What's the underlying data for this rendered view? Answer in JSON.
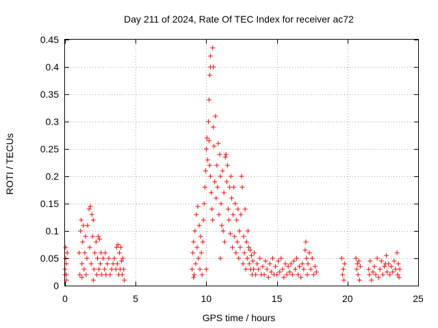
{
  "chart_data": {
    "type": "scatter",
    "title": "Day 211 of 2024, Rate Of TEC Index for receiver ac72",
    "xlabel": "GPS time / hours",
    "ylabel": "ROTI / TECUs",
    "xlim": [
      0,
      25
    ],
    "ylim": [
      0,
      0.45
    ],
    "x_ticks": [
      0,
      5,
      10,
      15,
      20,
      25
    ],
    "x_tick_labels": [
      "0",
      "5",
      "10",
      "15",
      "20",
      "25"
    ],
    "y_ticks": [
      0,
      0.05,
      0.1,
      0.15,
      0.2,
      0.25,
      0.3,
      0.35,
      0.4,
      0.45
    ],
    "y_tick_labels": [
      "0",
      "0.05",
      "0.1",
      "0.15",
      "0.2",
      "0.25",
      "0.3",
      "0.35",
      "0.4",
      "0.45"
    ],
    "grid": true,
    "marker": "+",
    "marker_color": "#ff0000",
    "points": [
      [
        0.0,
        0.02
      ],
      [
        0.0,
        0.03
      ],
      [
        0.05,
        0.05
      ],
      [
        0.05,
        0.07
      ],
      [
        0.1,
        0.04
      ],
      [
        0.1,
        0.02
      ],
      [
        0.15,
        0.06
      ],
      [
        0.1,
        0.01
      ],
      [
        1.0,
        0.06
      ],
      [
        1.05,
        0.02
      ],
      [
        1.1,
        0.1
      ],
      [
        1.15,
        0.12
      ],
      [
        1.2,
        0.04
      ],
      [
        1.25,
        0.08
      ],
      [
        1.3,
        0.11
      ],
      [
        1.35,
        0.03
      ],
      [
        1.4,
        0.06
      ],
      [
        1.45,
        0.09
      ],
      [
        1.5,
        0.02
      ],
      [
        1.55,
        0.05
      ],
      [
        1.6,
        0.11
      ],
      [
        1.7,
        0.14
      ],
      [
        1.75,
        0.07
      ],
      [
        1.8,
        0.145
      ],
      [
        1.85,
        0.04
      ],
      [
        1.9,
        0.13
      ],
      [
        1.95,
        0.09
      ],
      [
        2.0,
        0.12
      ],
      [
        2.05,
        0.03
      ],
      [
        2.1,
        0.06
      ],
      [
        2.2,
        0.08
      ],
      [
        2.25,
        0.02
      ],
      [
        2.3,
        0.05
      ],
      [
        2.35,
        0.09
      ],
      [
        2.4,
        0.03
      ],
      [
        2.45,
        0.085
      ],
      [
        2.5,
        0.04
      ],
      [
        2.55,
        0.06
      ],
      [
        2.6,
        0.02
      ],
      [
        2.7,
        0.05
      ],
      [
        2.8,
        0.03
      ],
      [
        2.85,
        0.06
      ],
      [
        2.9,
        0.02
      ],
      [
        3.0,
        0.04
      ],
      [
        3.1,
        0.05
      ],
      [
        3.2,
        0.02
      ],
      [
        3.3,
        0.03
      ],
      [
        3.4,
        0.04
      ],
      [
        3.5,
        0.05
      ],
      [
        3.6,
        0.03
      ],
      [
        3.65,
        0.07
      ],
      [
        3.7,
        0.04
      ],
      [
        3.75,
        0.075
      ],
      [
        3.8,
        0.02
      ],
      [
        3.85,
        0.06
      ],
      [
        3.9,
        0.03
      ],
      [
        3.95,
        0.07
      ],
      [
        4.0,
        0.045
      ],
      [
        4.05,
        0.02
      ],
      [
        4.1,
        0.05
      ],
      [
        4.15,
        0.03
      ],
      [
        4.2,
        0.01
      ],
      [
        1.2,
        0.015
      ],
      [
        2.0,
        0.01
      ],
      [
        9.0,
        0.03
      ],
      [
        9.05,
        0.06
      ],
      [
        9.1,
        0.08
      ],
      [
        9.15,
        0.02
      ],
      [
        9.2,
        0.1
      ],
      [
        9.25,
        0.04
      ],
      [
        9.3,
        0.13
      ],
      [
        9.35,
        0.07
      ],
      [
        9.4,
        0.145
      ],
      [
        9.45,
        0.05
      ],
      [
        9.5,
        0.11
      ],
      [
        9.55,
        0.03
      ],
      [
        9.6,
        0.09
      ],
      [
        9.65,
        0.06
      ],
      [
        9.7,
        0.02
      ],
      [
        9.75,
        0.08
      ],
      [
        9.8,
        0.12
      ],
      [
        9.85,
        0.15
      ],
      [
        9.9,
        0.18
      ],
      [
        9.95,
        0.21
      ],
      [
        10.0,
        0.25
      ],
      [
        10.05,
        0.27
      ],
      [
        10.1,
        0.23
      ],
      [
        10.15,
        0.3
      ],
      [
        10.2,
        0.265
      ],
      [
        10.25,
        0.22
      ],
      [
        10.3,
        0.2
      ],
      [
        10.2,
        0.34
      ],
      [
        10.25,
        0.385
      ],
      [
        10.3,
        0.4
      ],
      [
        10.3,
        0.42
      ],
      [
        10.45,
        0.435
      ],
      [
        10.5,
        0.4
      ],
      [
        10.35,
        0.17
      ],
      [
        10.4,
        0.14
      ],
      [
        10.45,
        0.12
      ],
      [
        10.5,
        0.29
      ],
      [
        10.55,
        0.255
      ],
      [
        10.6,
        0.19
      ],
      [
        10.65,
        0.31
      ],
      [
        10.7,
        0.16
      ],
      [
        10.75,
        0.22
      ],
      [
        10.8,
        0.18
      ],
      [
        10.85,
        0.26
      ],
      [
        10.9,
        0.13
      ],
      [
        10.95,
        0.24
      ],
      [
        11.0,
        0.2
      ],
      [
        11.05,
        0.15
      ],
      [
        11.1,
        0.11
      ],
      [
        11.15,
        0.21
      ],
      [
        11.2,
        0.1
      ],
      [
        11.25,
        0.17
      ],
      [
        11.3,
        0.08
      ],
      [
        11.35,
        0.235
      ],
      [
        11.4,
        0.24
      ],
      [
        11.45,
        0.19
      ],
      [
        11.5,
        0.22
      ],
      [
        11.55,
        0.14
      ],
      [
        11.6,
        0.12
      ],
      [
        11.65,
        0.18
      ],
      [
        11.7,
        0.095
      ],
      [
        11.75,
        0.2
      ],
      [
        11.8,
        0.16
      ],
      [
        11.85,
        0.07
      ],
      [
        11.9,
        0.13
      ],
      [
        11.95,
        0.18
      ],
      [
        12.0,
        0.09
      ],
      [
        12.05,
        0.15
      ],
      [
        12.1,
        0.06
      ],
      [
        12.15,
        0.12
      ],
      [
        12.2,
        0.08
      ],
      [
        12.25,
        0.14
      ],
      [
        12.3,
        0.05
      ],
      [
        12.35,
        0.1
      ],
      [
        12.4,
        0.07
      ],
      [
        12.45,
        0.13
      ],
      [
        12.5,
        0.2
      ],
      [
        12.55,
        0.18
      ],
      [
        12.6,
        0.04
      ],
      [
        12.65,
        0.09
      ],
      [
        12.7,
        0.06
      ],
      [
        12.75,
        0.14
      ],
      [
        12.8,
        0.03
      ],
      [
        12.85,
        0.08
      ],
      [
        12.9,
        0.05
      ],
      [
        12.95,
        0.1
      ],
      [
        13.0,
        0.07
      ],
      [
        13.05,
        0.04
      ],
      [
        13.1,
        0.065
      ],
      [
        13.15,
        0.03
      ],
      [
        13.2,
        0.055
      ],
      [
        13.25,
        0.02
      ],
      [
        13.3,
        0.045
      ],
      [
        13.35,
        0.03
      ],
      [
        13.4,
        0.06
      ],
      [
        13.5,
        0.02
      ],
      [
        13.6,
        0.04
      ],
      [
        13.7,
        0.03
      ],
      [
        13.8,
        0.05
      ],
      [
        13.9,
        0.02
      ],
      [
        14.0,
        0.035
      ],
      [
        14.1,
        0.02
      ],
      [
        14.2,
        0.045
      ],
      [
        14.3,
        0.03
      ],
      [
        14.4,
        0.015
      ],
      [
        14.5,
        0.04
      ],
      [
        14.6,
        0.025
      ],
      [
        14.7,
        0.05
      ],
      [
        14.8,
        0.02
      ],
      [
        14.9,
        0.035
      ],
      [
        15.0,
        0.02
      ],
      [
        15.1,
        0.045
      ],
      [
        15.2,
        0.025
      ],
      [
        15.3,
        0.05
      ],
      [
        15.4,
        0.03
      ],
      [
        15.5,
        0.015
      ],
      [
        15.6,
        0.04
      ],
      [
        15.7,
        0.02
      ],
      [
        15.8,
        0.035
      ],
      [
        15.9,
        0.025
      ],
      [
        16.0,
        0.04
      ],
      [
        16.1,
        0.02
      ],
      [
        16.2,
        0.045
      ],
      [
        16.3,
        0.03
      ],
      [
        16.4,
        0.05
      ],
      [
        16.5,
        0.02
      ],
      [
        16.6,
        0.035
      ],
      [
        16.7,
        0.015
      ],
      [
        16.8,
        0.04
      ],
      [
        16.9,
        0.03
      ],
      [
        17.0,
        0.065
      ],
      [
        17.05,
        0.08
      ],
      [
        17.1,
        0.05
      ],
      [
        17.15,
        0.02
      ],
      [
        17.2,
        0.04
      ],
      [
        17.3,
        0.06
      ],
      [
        17.4,
        0.03
      ],
      [
        17.5,
        0.05
      ],
      [
        17.6,
        0.02
      ],
      [
        17.7,
        0.035
      ],
      [
        17.8,
        0.025
      ],
      [
        9.1,
        0.015
      ],
      [
        10.0,
        0.03
      ],
      [
        11.0,
        0.05
      ],
      [
        19.6,
        0.05
      ],
      [
        19.65,
        0.02
      ],
      [
        19.7,
        0.03
      ],
      [
        19.75,
        0.01
      ],
      [
        19.8,
        0.04
      ],
      [
        20.6,
        0.05
      ],
      [
        20.65,
        0.03
      ],
      [
        20.7,
        0.04
      ],
      [
        20.75,
        0.02
      ],
      [
        20.8,
        0.045
      ],
      [
        20.85,
        0.01
      ],
      [
        20.9,
        0.035
      ],
      [
        21.5,
        0.03
      ],
      [
        21.55,
        0.02
      ],
      [
        21.6,
        0.045
      ],
      [
        21.7,
        0.01
      ],
      [
        21.8,
        0.025
      ],
      [
        21.9,
        0.035
      ],
      [
        22.0,
        0.02
      ],
      [
        22.1,
        0.05
      ],
      [
        22.2,
        0.015
      ],
      [
        22.3,
        0.03
      ],
      [
        22.4,
        0.045
      ],
      [
        22.5,
        0.02
      ],
      [
        22.6,
        0.035
      ],
      [
        22.7,
        0.04
      ],
      [
        22.75,
        0.055
      ],
      [
        22.8,
        0.025
      ],
      [
        22.9,
        0.04
      ],
      [
        23.0,
        0.02
      ],
      [
        23.1,
        0.035
      ],
      [
        23.2,
        0.025
      ],
      [
        23.3,
        0.045
      ],
      [
        23.4,
        0.03
      ],
      [
        23.5,
        0.06
      ],
      [
        23.55,
        0.02
      ],
      [
        23.6,
        0.04
      ],
      [
        23.65,
        0.015
      ],
      [
        23.7,
        0.03
      ]
    ]
  }
}
